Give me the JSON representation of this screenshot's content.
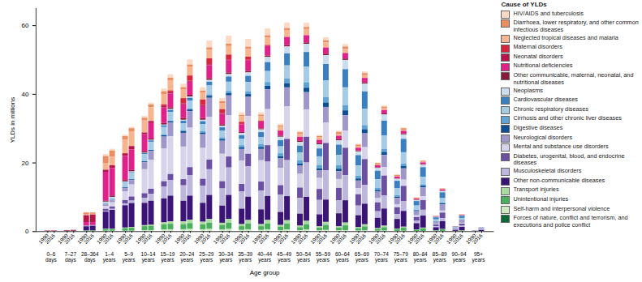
{
  "chart_data": {
    "type": "bar",
    "stacked": true,
    "x_label": "Age group",
    "y_label": "YLDs in millions",
    "legend": "right",
    "legend_title": "Cause of YLDs",
    "grid": false,
    "ylim": [
      0,
      65
    ],
    "yticks": [
      0,
      20,
      40,
      60
    ],
    "groups": [
      "0–6 days",
      "7–27 days",
      "28–364 days",
      "1–4 years",
      "5–9 years",
      "10–14 years",
      "15–19 years",
      "20–24 years",
      "25–29 years",
      "30–34 years",
      "35–39 years",
      "40–44 years",
      "45–49 years",
      "50–54 years",
      "55–59 years",
      "60–64 years",
      "65–69 years",
      "70–74 years",
      "75–79 years",
      "80–84 years",
      "85–89 years",
      "90–94 years",
      "95+ years"
    ],
    "categories": [
      "1990",
      "2016",
      "1990",
      "2016",
      "1990",
      "2016",
      "1990",
      "2016",
      "1990",
      "2016",
      "1990",
      "2016",
      "1990",
      "2016",
      "1990",
      "2016",
      "1990",
      "2016",
      "1990",
      "2016",
      "1990",
      "2016",
      "1990",
      "2016",
      "1990",
      "2016",
      "1990",
      "2016",
      "1990",
      "2016",
      "1990",
      "2016",
      "1990",
      "2016",
      "1990",
      "2016",
      "1990",
      "2016",
      "1990",
      "2016",
      "1990",
      "2016",
      "1990",
      "2016",
      "1990",
      "2016"
    ],
    "series": [
      {
        "name": "HIV/AIDS and tuberculosis",
        "color": "#fbd9c4",
        "values": [
          0,
          0,
          0,
          0,
          0.05,
          0.05,
          0.6,
          0.5,
          0.4,
          0.4,
          0.5,
          0.5,
          0.8,
          1.0,
          1.0,
          1.5,
          1.0,
          2.0,
          0.9,
          2.3,
          0.8,
          2.3,
          0.7,
          2.0,
          0.5,
          1.6,
          0.4,
          1.2,
          0.35,
          0.9,
          0.35,
          0.7,
          0.25,
          0.5,
          0.15,
          0.3,
          0.1,
          0.2,
          0.05,
          0.1,
          0.02,
          0.05,
          0.01,
          0.02,
          0,
          0.01
        ]
      },
      {
        "name": "Diarrhoea, lower respiratory, and other common infectious diseases",
        "color": "#eb8d63",
        "values": [
          0.02,
          0.02,
          0.03,
          0.04,
          0.6,
          0.4,
          2.0,
          1.8,
          1.0,
          0.9,
          0.8,
          0.8,
          0.8,
          0.7,
          0.7,
          0.7,
          0.6,
          0.7,
          0.5,
          0.7,
          0.4,
          0.6,
          0.4,
          0.6,
          0.4,
          0.6,
          0.4,
          0.6,
          0.4,
          0.6,
          0.5,
          0.7,
          0.5,
          0.6,
          0.4,
          0.5,
          0.35,
          0.45,
          0.25,
          0.35,
          0.12,
          0.22,
          0.05,
          0.1,
          0.01,
          0.03
        ]
      },
      {
        "name": "Neglected tropical diseases and malaria",
        "color": "#f6b48f",
        "values": [
          0,
          0,
          0,
          0,
          0.2,
          0.2,
          2.0,
          2.5,
          4.0,
          4.3,
          3.5,
          4.0,
          3.0,
          3.0,
          2.5,
          2.5,
          2.0,
          2.5,
          1.8,
          2.5,
          1.6,
          2.3,
          1.4,
          2.2,
          1.1,
          2.0,
          0.9,
          1.8,
          0.7,
          1.5,
          0.6,
          1.2,
          0.4,
          0.8,
          0.25,
          0.5,
          0.15,
          0.3,
          0.07,
          0.15,
          0.03,
          0.07,
          0.01,
          0.03,
          0,
          0.01
        ]
      },
      {
        "name": "Maternal disorders",
        "color": "#d7263d",
        "values": [
          0,
          0,
          0,
          0,
          0,
          0,
          0,
          0,
          0,
          0,
          0,
          0,
          0.5,
          0.5,
          1.5,
          1.5,
          1.6,
          1.7,
          1.2,
          1.4,
          0.6,
          0.9,
          0.2,
          0.3,
          0,
          0,
          0,
          0,
          0,
          0,
          0,
          0,
          0,
          0,
          0,
          0,
          0,
          0,
          0,
          0,
          0,
          0,
          0,
          0,
          0,
          0
        ]
      },
      {
        "name": "Neonatal disorders",
        "color": "#b3174a",
        "values": [
          0.12,
          0.14,
          0.18,
          0.24,
          2.0,
          2.2,
          0.6,
          0.8,
          0.8,
          1.0,
          0.5,
          0.6,
          0.4,
          0.4,
          0.3,
          0.3,
          0.3,
          0.3,
          0.2,
          0.2,
          0.1,
          0.1,
          0,
          0,
          0,
          0,
          0,
          0,
          0,
          0,
          0,
          0,
          0,
          0,
          0,
          0,
          0,
          0,
          0,
          0,
          0,
          0,
          0,
          0,
          0,
          0
        ]
      },
      {
        "name": "Nutritional deficiencies",
        "color": "#e0218a",
        "values": [
          0,
          0,
          0,
          0,
          1.0,
          0.8,
          8.4,
          8.0,
          7.0,
          6.0,
          5.0,
          4.5,
          4.5,
          4.0,
          4.0,
          3.8,
          3.5,
          3.8,
          3.0,
          3.6,
          2.3,
          3.2,
          2.0,
          2.8,
          1.5,
          2.4,
          1.2,
          2.1,
          1.0,
          1.8,
          1.0,
          1.6,
          0.8,
          1.3,
          0.6,
          1.0,
          0.5,
          0.8,
          0.3,
          0.5,
          0.15,
          0.35,
          0.05,
          0.15,
          0.01,
          0.04
        ]
      },
      {
        "name": "Other communicable, maternal, neonatal, and nutritional diseases",
        "color": "#8b1a3a",
        "values": [
          0,
          0,
          0,
          0,
          0.05,
          0.1,
          0.3,
          0.4,
          0.4,
          0.4,
          0.4,
          0.4,
          0.5,
          0.5,
          0.5,
          0.5,
          0.5,
          0.5,
          0.4,
          0.5,
          0.3,
          0.4,
          0.3,
          0.4,
          0.3,
          0.4,
          0.3,
          0.4,
          0.3,
          0.4,
          0.3,
          0.4,
          0.25,
          0.35,
          0.2,
          0.3,
          0.15,
          0.25,
          0.1,
          0.2,
          0.05,
          0.12,
          0.02,
          0.05,
          0,
          0.01
        ]
      },
      {
        "name": "Neoplasms",
        "color": "#c9ddef",
        "values": [
          0,
          0,
          0,
          0,
          0,
          0,
          0.1,
          0.1,
          0.1,
          0.1,
          0.1,
          0.15,
          0.2,
          0.25,
          0.3,
          0.4,
          0.4,
          0.5,
          0.5,
          0.7,
          0.6,
          1.0,
          0.8,
          1.5,
          1.0,
          2.0,
          1.1,
          2.4,
          1.2,
          2.6,
          1.3,
          2.7,
          1.1,
          2.3,
          0.8,
          1.8,
          0.6,
          1.3,
          0.3,
          0.7,
          0.12,
          0.4,
          0.04,
          0.13,
          0.01,
          0.03
        ]
      },
      {
        "name": "Cardiovascular diseases",
        "color": "#3a7fbf",
        "values": [
          0,
          0,
          0,
          0,
          0,
          0,
          0,
          0,
          0.1,
          0.15,
          0.3,
          0.4,
          0.5,
          0.6,
          0.7,
          0.8,
          0.9,
          1.1,
          1.0,
          1.5,
          1.1,
          1.8,
          1.5,
          2.6,
          1.8,
          3.5,
          2.0,
          4.3,
          2.3,
          4.8,
          3.0,
          5.3,
          3.0,
          5.0,
          2.5,
          4.3,
          2.2,
          3.9,
          1.3,
          2.8,
          0.6,
          1.7,
          0.2,
          0.6,
          0.04,
          0.15
        ]
      },
      {
        "name": "Chronic respiratory diseases",
        "color": "#a6cbe6",
        "values": [
          0,
          0,
          0,
          0,
          0,
          0,
          0.6,
          0.8,
          1.5,
          2.0,
          2.0,
          2.3,
          2.2,
          2.5,
          2.0,
          2.3,
          2.0,
          2.6,
          1.9,
          2.7,
          1.8,
          2.7,
          2.0,
          3.2,
          2.0,
          3.8,
          2.2,
          4.5,
          2.5,
          4.8,
          3.0,
          5.2,
          3.0,
          4.8,
          2.5,
          3.9,
          2.0,
          3.3,
          1.2,
          2.2,
          0.5,
          1.3,
          0.15,
          0.45,
          0.03,
          0.1
        ]
      },
      {
        "name": "Cirrhosis and other chronic liver diseases",
        "color": "#5fa3d4",
        "values": [
          0,
          0,
          0,
          0,
          0,
          0,
          0,
          0,
          0.05,
          0.05,
          0.1,
          0.1,
          0.2,
          0.2,
          0.3,
          0.3,
          0.4,
          0.4,
          0.5,
          0.6,
          0.6,
          0.8,
          0.8,
          1.1,
          0.9,
          1.4,
          1.0,
          1.6,
          1.0,
          1.6,
          1.0,
          1.5,
          0.8,
          1.2,
          0.6,
          0.9,
          0.4,
          0.7,
          0.2,
          0.4,
          0.08,
          0.2,
          0.02,
          0.07,
          0,
          0.01
        ]
      },
      {
        "name": "Digestive diseases",
        "color": "#0d4f94",
        "values": [
          0,
          0,
          0,
          0,
          0,
          0,
          0.1,
          0.1,
          0.2,
          0.2,
          0.3,
          0.3,
          0.4,
          0.4,
          0.5,
          0.5,
          0.5,
          0.6,
          0.5,
          0.7,
          0.5,
          0.8,
          0.6,
          1.0,
          0.6,
          1.2,
          0.6,
          1.3,
          0.6,
          1.3,
          0.7,
          1.4,
          0.6,
          1.2,
          0.5,
          0.9,
          0.4,
          0.7,
          0.25,
          0.5,
          0.1,
          0.3,
          0.03,
          0.1,
          0.01,
          0.02
        ]
      },
      {
        "name": "Neurological disorders",
        "color": "#9f97c9",
        "values": [
          0,
          0,
          0,
          0,
          0.1,
          0.15,
          0.5,
          0.6,
          1.0,
          1.3,
          2.0,
          2.5,
          3.5,
          4.0,
          4.0,
          4.8,
          4.0,
          5.5,
          3.8,
          5.8,
          3.4,
          5.6,
          3.3,
          5.8,
          2.8,
          5.5,
          2.4,
          5.0,
          2.2,
          4.5,
          2.3,
          4.5,
          2.2,
          4.0,
          1.9,
          3.5,
          1.8,
          3.3,
          1.2,
          2.6,
          0.6,
          1.8,
          0.22,
          0.8,
          0.05,
          0.2
        ]
      },
      {
        "name": "Mental and substance use disorders",
        "color": "#d6d3eb",
        "values": [
          0,
          0,
          0,
          0,
          0,
          0,
          0.8,
          1.2,
          2.5,
          3.5,
          7.0,
          8.5,
          9.5,
          11.0,
          9.5,
          11.5,
          9.0,
          12.5,
          8.0,
          12.0,
          6.8,
          11.0,
          6.2,
          10.5,
          5.0,
          9.5,
          4.0,
          8.0,
          3.2,
          6.0,
          2.6,
          5.0,
          1.8,
          3.5,
          1.2,
          2.5,
          0.9,
          1.8,
          0.5,
          1.1,
          0.2,
          0.6,
          0.07,
          0.25,
          0.01,
          0.05
        ]
      },
      {
        "name": "Diabetes, urogenital, blood, and endocrine diseases",
        "color": "#6a4fa3",
        "values": [
          0,
          0,
          0,
          0,
          0.1,
          0.1,
          0.6,
          0.7,
          1.0,
          1.2,
          1.3,
          1.5,
          1.5,
          1.8,
          1.8,
          2.3,
          2.0,
          2.8,
          2.1,
          3.2,
          2.2,
          3.7,
          2.6,
          4.8,
          2.8,
          6.2,
          3.0,
          7.5,
          3.2,
          8.0,
          3.6,
          8.0,
          3.3,
          7.5,
          2.6,
          5.8,
          2.0,
          4.5,
          1.1,
          2.8,
          0.5,
          1.6,
          0.15,
          0.6,
          0.03,
          0.13
        ]
      },
      {
        "name": "Musculoskeletal disorders",
        "color": "#bdb7dd",
        "values": [
          0,
          0,
          0,
          0,
          0,
          0,
          0.2,
          0.3,
          0.5,
          0.7,
          1.5,
          2.0,
          3.5,
          4.5,
          4.5,
          6.0,
          5.0,
          7.5,
          5.0,
          8.0,
          5.0,
          8.8,
          5.5,
          10.0,
          5.0,
          10.5,
          4.6,
          10.0,
          4.2,
          8.5,
          3.8,
          7.3,
          2.8,
          5.5,
          1.9,
          3.8,
          1.4,
          2.8,
          0.7,
          1.7,
          0.3,
          0.9,
          0.1,
          0.35,
          0.02,
          0.08
        ]
      },
      {
        "name": "Other non-communicable diseases",
        "color": "#3b1477",
        "values": [
          0.05,
          0.05,
          0.08,
          0.1,
          1.2,
          1.3,
          5.0,
          5.5,
          6.5,
          7.0,
          6.5,
          7.0,
          7.0,
          7.5,
          6.0,
          7.0,
          5.5,
          7.0,
          5.0,
          7.0,
          4.5,
          6.8,
          4.3,
          7.0,
          3.8,
          7.0,
          3.5,
          7.0,
          3.5,
          6.5,
          3.8,
          6.5,
          3.5,
          6.0,
          3.0,
          5.0,
          2.8,
          4.6,
          1.8,
          3.5,
          0.9,
          2.3,
          0.3,
          1.0,
          0.06,
          0.25
        ]
      },
      {
        "name": "Transport injuries",
        "color": "#a9dba0",
        "values": [
          0,
          0,
          0,
          0,
          0,
          0,
          0.1,
          0.1,
          0.15,
          0.2,
          0.3,
          0.35,
          0.6,
          0.7,
          0.8,
          1.0,
          0.8,
          1.1,
          0.7,
          1.1,
          0.6,
          1.0,
          0.6,
          1.0,
          0.5,
          1.0,
          0.45,
          0.95,
          0.4,
          0.85,
          0.4,
          0.8,
          0.3,
          0.6,
          0.2,
          0.45,
          0.15,
          0.3,
          0.08,
          0.18,
          0.03,
          0.08,
          0.01,
          0.03,
          0,
          0.01
        ]
      },
      {
        "name": "Unintentional injuries",
        "color": "#4caf5e",
        "values": [
          0.01,
          0.01,
          0.01,
          0.02,
          0.2,
          0.2,
          0.5,
          0.5,
          0.8,
          0.9,
          1.2,
          1.2,
          1.5,
          1.6,
          1.5,
          1.7,
          1.4,
          1.8,
          1.3,
          1.8,
          1.1,
          1.7,
          1.1,
          1.7,
          1.0,
          1.7,
          0.9,
          1.6,
          0.8,
          1.5,
          0.8,
          1.4,
          0.7,
          1.2,
          0.6,
          1.0,
          0.55,
          0.9,
          0.4,
          0.8,
          0.2,
          0.5,
          0.07,
          0.2,
          0.02,
          0.05
        ]
      },
      {
        "name": "Self-harm and interpersonal violence",
        "color": "#cdeac3",
        "values": [
          0,
          0,
          0,
          0,
          0,
          0,
          0.05,
          0.05,
          0.05,
          0.05,
          0.2,
          0.25,
          0.4,
          0.5,
          0.5,
          0.6,
          0.5,
          0.6,
          0.4,
          0.6,
          0.3,
          0.5,
          0.3,
          0.5,
          0.25,
          0.45,
          0.2,
          0.4,
          0.15,
          0.3,
          0.15,
          0.25,
          0.1,
          0.15,
          0.07,
          0.1,
          0.05,
          0.07,
          0.03,
          0.04,
          0.01,
          0.02,
          0,
          0.01,
          0,
          0
        ]
      },
      {
        "name": "Forces of nature, conflict and terrorism, and executions and police conflict",
        "color": "#0b6a33",
        "values": [
          0,
          0,
          0,
          0,
          0,
          0,
          0.05,
          0.05,
          0.05,
          0.05,
          0.05,
          0.05,
          0.05,
          0.05,
          0.05,
          0.05,
          0.05,
          0.05,
          0.05,
          0.05,
          0.05,
          0.05,
          0.05,
          0.05,
          0.05,
          0.05,
          0.05,
          0.05,
          0.05,
          0.05,
          0.05,
          0.05,
          0.05,
          0.05,
          0.03,
          0.04,
          0.02,
          0.03,
          0.01,
          0.02,
          0.01,
          0.01,
          0,
          0,
          0,
          0
        ]
      }
    ]
  }
}
